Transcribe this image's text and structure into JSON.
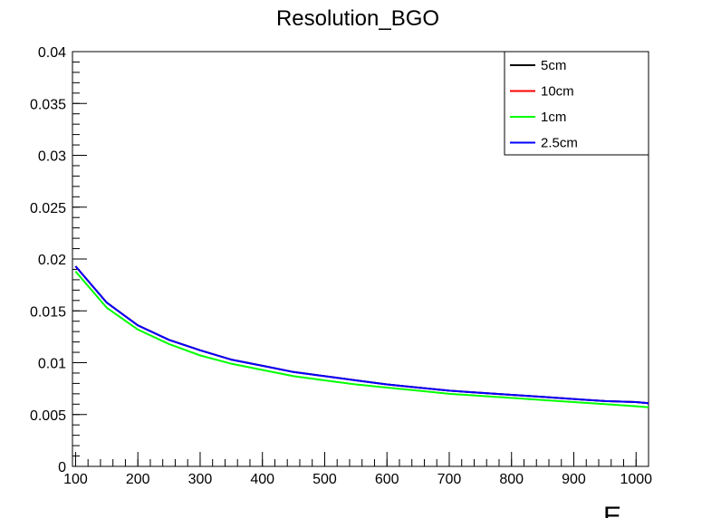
{
  "chart_data": {
    "type": "line",
    "title": "Resolution_BGO",
    "xlabel": "E",
    "ylabel": "",
    "xlim": [
      95,
      1020
    ],
    "ylim": [
      0,
      0.04
    ],
    "x_ticks": [
      100,
      200,
      300,
      400,
      500,
      600,
      700,
      800,
      900,
      1000
    ],
    "x_tick_labels": [
      "100",
      "200",
      "300",
      "400",
      "500",
      "600",
      "700",
      "800",
      "900",
      "1000"
    ],
    "y_ticks": [
      0,
      0.005,
      0.01,
      0.015,
      0.02,
      0.025,
      0.03,
      0.035,
      0.04
    ],
    "y_tick_labels": [
      "0",
      "0.005",
      "0.01",
      "0.015",
      "0.02",
      "0.025",
      "0.03",
      "0.035",
      "0.04"
    ],
    "grid": false,
    "legend_position": "top-right",
    "x": [
      100,
      150,
      200,
      250,
      300,
      350,
      400,
      450,
      500,
      550,
      600,
      650,
      700,
      750,
      800,
      850,
      900,
      950,
      1000,
      1020
    ],
    "series": [
      {
        "name": "5cm",
        "color": "#000000",
        "values": [
          0.0193,
          0.0158,
          0.0136,
          0.0122,
          0.0112,
          0.0103,
          0.0097,
          0.0091,
          0.0087,
          0.0083,
          0.0079,
          0.0076,
          0.0073,
          0.0071,
          0.0069,
          0.0067,
          0.0065,
          0.0063,
          0.0062,
          0.0061
        ]
      },
      {
        "name": "10cm",
        "color": "#ff0000",
        "values": [
          0.0193,
          0.0158,
          0.0136,
          0.0122,
          0.0112,
          0.0103,
          0.0097,
          0.0091,
          0.0087,
          0.0083,
          0.0079,
          0.0076,
          0.0073,
          0.0071,
          0.0069,
          0.0067,
          0.0065,
          0.0063,
          0.0062,
          0.0061
        ]
      },
      {
        "name": "1cm",
        "color": "#00ff00",
        "values": [
          0.0188,
          0.0153,
          0.0132,
          0.0118,
          0.0107,
          0.0099,
          0.0093,
          0.0087,
          0.0083,
          0.0079,
          0.0076,
          0.0073,
          0.007,
          0.0068,
          0.0066,
          0.0064,
          0.0062,
          0.006,
          0.0058,
          0.0057
        ]
      },
      {
        "name": "2.5cm",
        "color": "#0000ff",
        "values": [
          0.0193,
          0.0158,
          0.0136,
          0.0122,
          0.0112,
          0.0103,
          0.0097,
          0.0091,
          0.0087,
          0.0083,
          0.0079,
          0.0076,
          0.0073,
          0.0071,
          0.0069,
          0.0067,
          0.0065,
          0.0063,
          0.0062,
          0.0061
        ]
      }
    ]
  }
}
